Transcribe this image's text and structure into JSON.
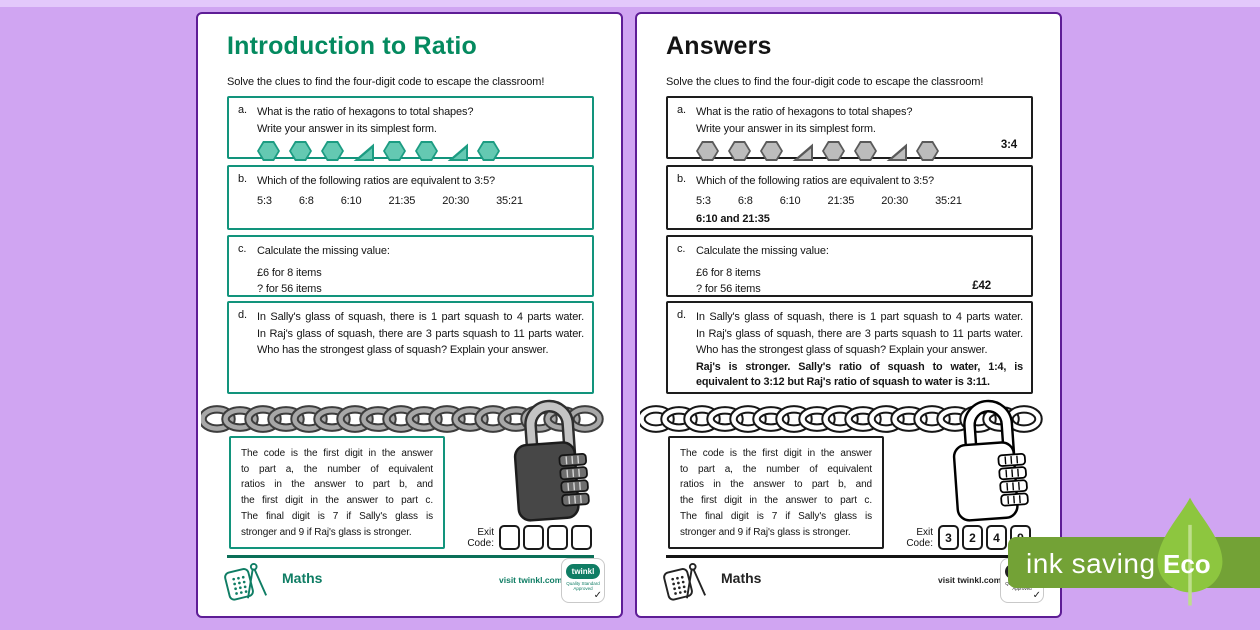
{
  "common": {
    "subtitle": "Solve the clues to find the four-digit code to escape the classroom!",
    "box_a": {
      "letter": "a.",
      "line1": "What is the ratio of hexagons to total shapes?",
      "line2": "Write your answer in its simplest form.",
      "shapes": [
        "hexagon",
        "hexagon",
        "hexagon",
        "triangle",
        "hexagon",
        "hexagon",
        "triangle",
        "hexagon"
      ]
    },
    "box_b": {
      "letter": "b.",
      "question": "Which of the following ratios are equivalent to 3:5?",
      "options": [
        "5:3",
        "6:8",
        "6:10",
        "21:35",
        "20:30",
        "35:21"
      ]
    },
    "box_c": {
      "letter": "c.",
      "question": "Calculate the missing value:",
      "line1": "£6 for 8 items",
      "line2": "? for 56 items"
    },
    "box_d": {
      "letter": "d.",
      "line1": "In Sally's glass of squash, there is 1 part squash to 4 parts water.",
      "line2": "In Raj's glass of squash, there are 3 parts squash to 11 parts water.",
      "line3": "Who has the strongest glass of squash? Explain your answer."
    },
    "code_lines": [
      "The code is the first digit in the answer",
      "to part a, the number of equivalent",
      "ratios in the answer to part b, and",
      "the first digit in the answer to part c.",
      "The final digit is 7 if Sally's glass is",
      "stronger and 9 if Raj's glass is stronger."
    ],
    "exit_label_line1": "Exit",
    "exit_label_line2": "Code:",
    "footer_subject": "Maths",
    "visit_text": "visit twinkl.com",
    "logo_text": "twinkl",
    "logo_subtext": "Quality Standard Approved",
    "logo_check": "✓"
  },
  "answers": {
    "a": "3:4",
    "b": "6:10 and 21:35",
    "c": "£42",
    "d_line1": "Raj's is stronger. Sally's ratio of squash to water, 1:4, is",
    "d_line2": "equivalent to 3:12 but Raj's ratio of squash to water is 3:11."
  },
  "page1": {
    "title": "Introduction to Ratio",
    "exit_digits": [
      "",
      "",
      "",
      ""
    ]
  },
  "page2": {
    "title": "Answers",
    "exit_digits": [
      "3",
      "2",
      "4",
      "9"
    ]
  },
  "badge": {
    "ink_label": "ink saving",
    "eco_label": "Eco"
  },
  "colors": {
    "worksheet_accent": "#12947c",
    "worksheet_title": "#048a5f",
    "answers_accent": "#1d1d1d",
    "background_purple": "#d0a5f2",
    "eco_bar_green": "#73a236",
    "eco_leaf_green": "#8dc63f"
  }
}
